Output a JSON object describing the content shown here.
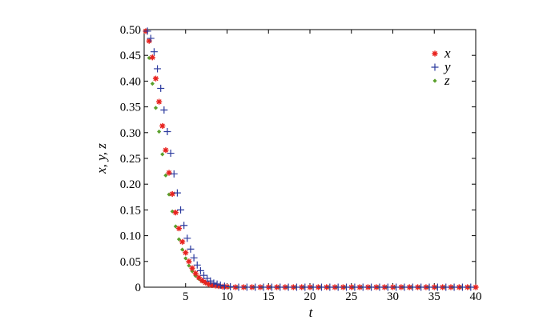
{
  "chart_data": {
    "type": "scatter",
    "title": "",
    "xlabel": "t",
    "ylabel": "x, y, z",
    "xlim": [
      0,
      40
    ],
    "ylim": [
      0,
      0.5
    ],
    "xticks": [
      5,
      10,
      15,
      20,
      25,
      30,
      35,
      40
    ],
    "xtick_labels": [
      "5",
      "10",
      "15",
      "20",
      "25",
      "30",
      "35",
      "40"
    ],
    "yticks": [
      0,
      0.05,
      0.1,
      0.15,
      0.2,
      0.25,
      0.3,
      0.35,
      0.4,
      0.45,
      0.5
    ],
    "ytick_labels": [
      "0",
      "0.05",
      "0.10",
      "0.15",
      "0.20",
      "0.25",
      "0.30",
      "0.35",
      "0.40",
      "0.45",
      "0.50"
    ],
    "grid": false,
    "legend_position": "top-right",
    "series": [
      {
        "name": "x",
        "marker": "asterisk",
        "color": "#e8231f",
        "x": [
          0.2,
          0.6,
          1.0,
          1.4,
          1.8,
          2.2,
          2.6,
          3.0,
          3.4,
          3.8,
          4.2,
          4.6,
          5.0,
          5.4,
          5.8,
          6.2,
          6.6,
          7.0,
          7.4,
          7.8,
          8.2,
          8.6,
          9.0,
          9.5,
          10,
          11,
          12,
          13,
          14,
          15,
          16,
          17,
          18,
          19,
          20,
          21,
          22,
          23,
          24,
          25,
          26,
          27,
          28,
          29,
          30,
          31,
          32,
          33,
          34,
          35,
          36,
          37,
          38,
          39,
          40
        ],
        "y": [
          0.497,
          0.478,
          0.446,
          0.405,
          0.36,
          0.313,
          0.266,
          0.222,
          0.181,
          0.145,
          0.114,
          0.088,
          0.067,
          0.05,
          0.037,
          0.027,
          0.019,
          0.013,
          0.009,
          0.006,
          0.004,
          0.003,
          0.002,
          0.001,
          0.001,
          0,
          0,
          0,
          0,
          0,
          0,
          0,
          0,
          0,
          0,
          0,
          0,
          0,
          0,
          0,
          0,
          0,
          0,
          0,
          0,
          0,
          0,
          0,
          0,
          0,
          0,
          0,
          0,
          0,
          0
        ]
      },
      {
        "name": "y",
        "marker": "plus",
        "color": "#2b3a9e",
        "x": [
          0.4,
          0.8,
          1.2,
          1.6,
          2.0,
          2.4,
          2.8,
          3.2,
          3.6,
          4.0,
          4.4,
          4.8,
          5.2,
          5.6,
          6.0,
          6.4,
          6.8,
          7.2,
          7.6,
          8.0,
          8.4,
          8.8,
          9.2,
          9.7,
          10.4,
          11.4,
          12.4,
          13.4,
          14.4,
          15.4,
          16.4,
          17.4,
          18.4,
          19.4,
          20.4,
          21.4,
          22.4,
          23.4,
          24.4,
          25.4,
          26.4,
          27.4,
          28.4,
          29.4,
          30.4,
          31.4,
          32.4,
          33.4,
          34.4,
          35.4,
          36.4,
          37.4,
          38.4,
          39.4
        ],
        "y": [
          0.497,
          0.483,
          0.457,
          0.424,
          0.386,
          0.344,
          0.302,
          0.26,
          0.22,
          0.183,
          0.15,
          0.12,
          0.095,
          0.074,
          0.057,
          0.043,
          0.032,
          0.023,
          0.017,
          0.012,
          0.008,
          0.006,
          0.004,
          0.002,
          0.001,
          0,
          0,
          0,
          0,
          0,
          0,
          0,
          0,
          0,
          0,
          0,
          0,
          0,
          0,
          0,
          0,
          0,
          0,
          0,
          0,
          0,
          0,
          0,
          0,
          0,
          0,
          0,
          0,
          0
        ]
      },
      {
        "name": "z",
        "marker": "diamond",
        "color": "#5aa02c",
        "x": [
          0.2,
          0.6,
          1.0,
          1.4,
          1.8,
          2.2,
          2.6,
          3.0,
          3.4,
          3.8,
          4.2,
          4.6,
          5.0,
          5.4,
          5.8,
          6.2,
          6.6,
          7.0,
          7.4,
          7.8,
          8.2,
          8.6,
          9.0,
          9.5,
          10.2,
          11.2,
          12.2,
          13.2,
          14.2,
          15.2,
          16.2,
          17.2,
          18.2,
          19.2,
          20.2,
          21.2,
          22.2,
          23.2,
          24.2,
          25.2,
          26.2,
          27.2,
          28.2,
          29.2,
          30.2,
          31.2,
          32.2,
          33.2,
          34.2,
          35.2,
          36.2,
          37.2,
          38.2,
          39.2
        ],
        "y": [
          0.497,
          0.445,
          0.395,
          0.348,
          0.302,
          0.258,
          0.217,
          0.18,
          0.147,
          0.118,
          0.093,
          0.073,
          0.056,
          0.042,
          0.031,
          0.022,
          0.016,
          0.011,
          0.008,
          0.005,
          0.003,
          0.002,
          0.001,
          0.001,
          0,
          0,
          0,
          0,
          0,
          0,
          0,
          0,
          0,
          0,
          0,
          0,
          0,
          0,
          0,
          0,
          0,
          0,
          0,
          0,
          0,
          0,
          0,
          0,
          0,
          0,
          0,
          0,
          0,
          0
        ]
      }
    ]
  }
}
